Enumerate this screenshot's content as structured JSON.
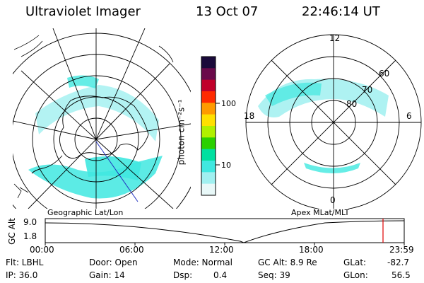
{
  "header": {
    "title": "Ultraviolet Imager",
    "date": "13 Oct 07",
    "time": "22:46:14 UT"
  },
  "left_map": {
    "caption": "Geographic Lat/Lon"
  },
  "right_map": {
    "caption": "Apex MLat/MLT",
    "mlt_labels": {
      "top": "12",
      "left": "18",
      "right": "6",
      "bottom": "0"
    },
    "lat_labels": [
      "60",
      "70",
      "80"
    ]
  },
  "colorbar": {
    "unit_label": "photon cm⁻²s⁻¹",
    "tick_labels": [
      "100",
      "10"
    ],
    "colors": [
      "#1a0a3a",
      "#6a0a4a",
      "#c0002a",
      "#ff2a00",
      "#ff9a00",
      "#ffe000",
      "#b0f000",
      "#2ad000",
      "#00e0a0",
      "#40e8e0",
      "#a0f0f0",
      "#e8f8f8"
    ]
  },
  "alt_plot": {
    "ylabel": "GC Alt",
    "y_ticks": [
      "9.0",
      "1.8"
    ],
    "x_ticks": [
      "00:00",
      "06:00",
      "12:00",
      "18:00",
      "23:59"
    ],
    "marker_color": "#e00000"
  },
  "status": {
    "flt": "Flt: LBHL",
    "ip": "IP: 36.0",
    "door": "Door: Open",
    "gain": "Gain: 14",
    "mode": "Mode: Normal",
    "dsp_label": "Dsp:",
    "dsp_value": "0.4",
    "gc_alt": "GC Alt: 8.9 Re",
    "seq": "Seq: 39",
    "glat_label": "GLat:",
    "glat_value": "-82.7",
    "glon_label": "GLon:",
    "glon_value": "56.5"
  }
}
